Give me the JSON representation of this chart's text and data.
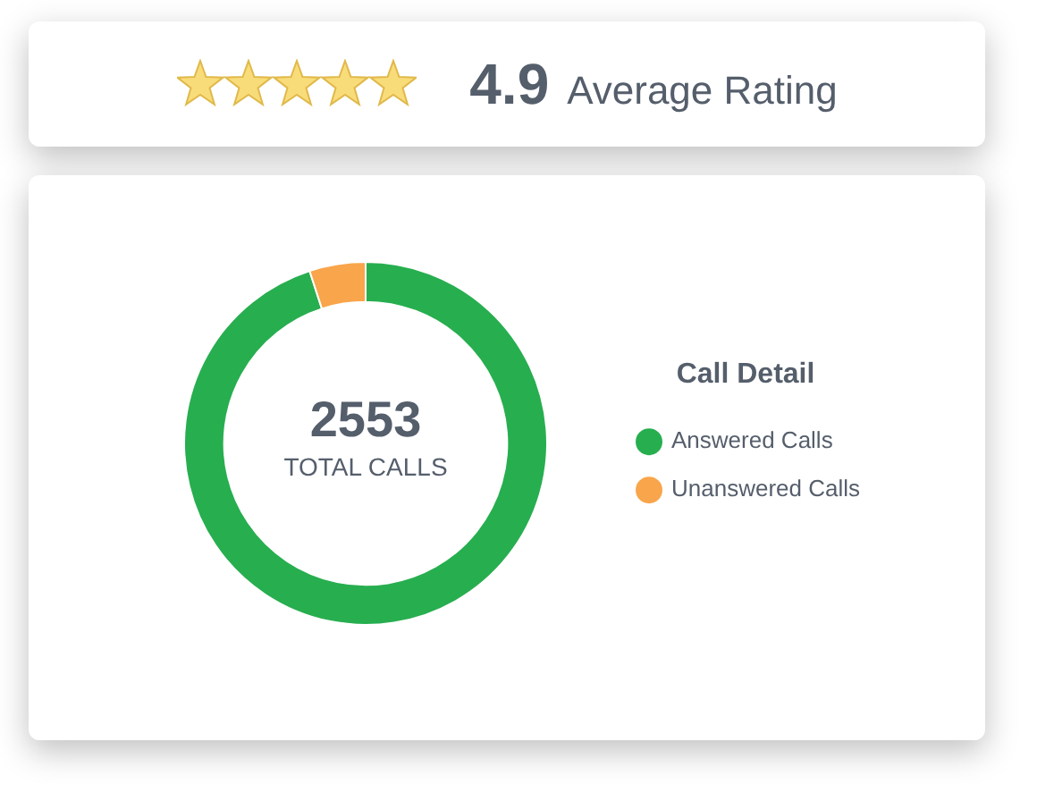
{
  "chart_data": [
    {
      "type": "other",
      "annotations": [
        "4.9",
        "Average Rating"
      ]
    },
    {
      "type": "donut",
      "categories": [
        "Answered Calls",
        "Unanswered Calls"
      ],
      "values": [
        95,
        5
      ],
      "colors": [
        "#27ae4f",
        "#f9a54b"
      ],
      "legend_title": "Call Detail",
      "legend": "right",
      "annotations": [
        "2553",
        "TOTAL CALLS"
      ]
    }
  ]
}
